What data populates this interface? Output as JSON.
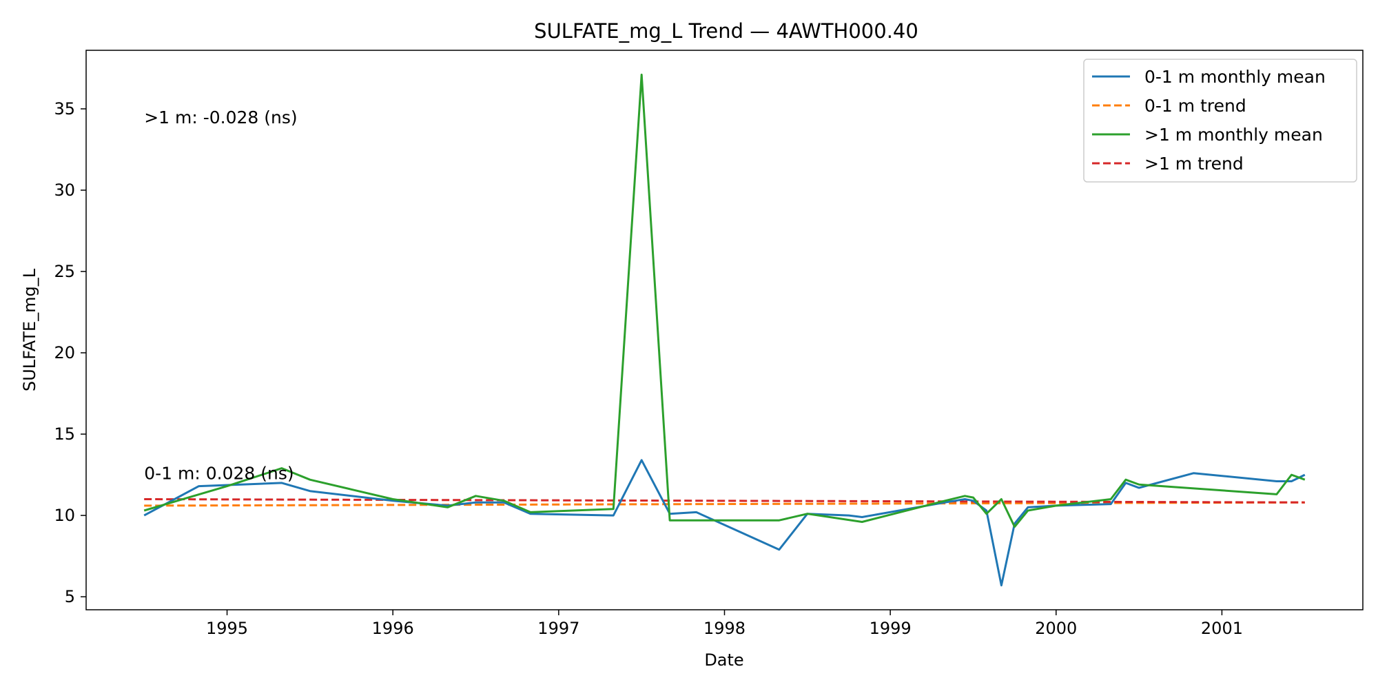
{
  "chart_data": {
    "type": "line",
    "title": "SULFATE_mg_L Trend — 4AWTH000.40",
    "xlabel": "Date",
    "ylabel": "SULFATE_mg_L",
    "xlim": [
      1994.15,
      2001.85
    ],
    "ylim": [
      4.2,
      38.6
    ],
    "x_ticks": [
      1995,
      1996,
      1997,
      1998,
      1999,
      2000,
      2001
    ],
    "y_ticks": [
      5,
      10,
      15,
      20,
      25,
      30,
      35
    ],
    "grid": false,
    "legend_position": "upper-right",
    "series": [
      {
        "name": "0-1 m monthly mean",
        "style": "solid",
        "color": "#1f77b4",
        "x": [
          1994.5,
          1994.83,
          1995.33,
          1995.5,
          1996.0,
          1996.33,
          1996.5,
          1996.67,
          1996.83,
          1997.33,
          1997.5,
          1997.67,
          1997.83,
          1998.33,
          1998.5,
          1998.75,
          1998.83,
          1999.33,
          1999.45,
          1999.5,
          1999.58,
          1999.67,
          1999.75,
          1999.83,
          2000.0,
          2000.33,
          2000.42,
          2000.5,
          2000.83,
          2001.33,
          2001.42,
          2001.5
        ],
        "y": [
          10.0,
          11.8,
          12.0,
          11.5,
          10.9,
          10.6,
          10.8,
          10.8,
          10.1,
          10.0,
          13.4,
          10.1,
          10.2,
          7.9,
          10.1,
          10.0,
          9.9,
          10.8,
          11.0,
          10.9,
          10.3,
          5.7,
          9.5,
          10.5,
          10.6,
          10.7,
          12.0,
          11.7,
          12.6,
          12.1,
          12.1,
          12.5
        ]
      },
      {
        "name": "0-1 m trend",
        "style": "dashed",
        "color": "#ff7f0e",
        "x": [
          1994.5,
          2001.5
        ],
        "y": [
          10.6,
          10.8
        ]
      },
      {
        "name": ">1 m monthly mean",
        "style": "solid",
        "color": "#2ca02c",
        "x": [
          1994.5,
          1995.0,
          1995.33,
          1995.5,
          1996.0,
          1996.33,
          1996.5,
          1996.67,
          1996.83,
          1997.33,
          1997.5,
          1997.67,
          1997.83,
          1998.33,
          1998.5,
          1998.83,
          1999.33,
          1999.45,
          1999.5,
          1999.58,
          1999.67,
          1999.75,
          1999.83,
          2000.0,
          2000.33,
          2000.42,
          2000.5,
          2001.33,
          2001.42,
          2001.5
        ],
        "y": [
          10.3,
          11.8,
          12.9,
          12.2,
          11.0,
          10.5,
          11.2,
          10.9,
          10.2,
          10.4,
          37.1,
          9.7,
          9.7,
          9.7,
          10.1,
          9.6,
          10.9,
          11.2,
          11.1,
          10.1,
          11.0,
          9.3,
          10.3,
          10.6,
          11.0,
          12.2,
          11.9,
          11.3,
          12.5,
          12.2
        ]
      },
      {
        "name": ">1 m trend",
        "style": "dashed",
        "color": "#d62728",
        "x": [
          1994.5,
          2001.5
        ],
        "y": [
          11.0,
          10.8
        ]
      }
    ],
    "annotations": [
      {
        "text": ">1 m: -0.028 (ns)",
        "x": 1994.5,
        "y": 34.5
      },
      {
        "text": "0-1 m: 0.028 (ns)",
        "x": 1994.5,
        "y": 12.6
      }
    ]
  }
}
